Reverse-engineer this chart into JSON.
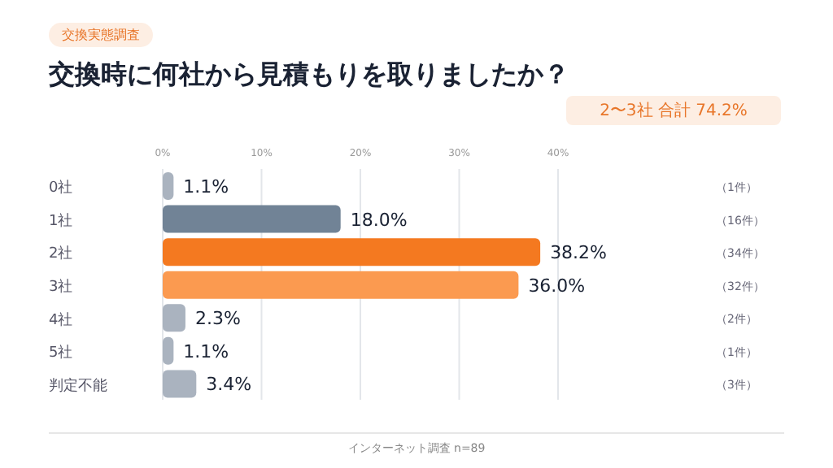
{
  "chart_data": {
    "type": "bar",
    "orientation": "horizontal",
    "title": "交換時に何社から見積もりを取りましたか？",
    "categories": [
      "0社",
      "1社",
      "2社",
      "3社",
      "4社",
      "5社",
      "判定不能"
    ],
    "values": [
      1.1,
      18.0,
      38.2,
      36.0,
      2.3,
      1.1,
      3.4
    ],
    "colors": [
      "#aab3bf",
      "#718396",
      "#f47920",
      "#fb9a50",
      "#aab3bf",
      "#aab3bf",
      "#aab3bf"
    ],
    "value_labels": [
      "1.1%",
      "18.0%",
      "38.2%",
      "36.0%",
      "2.3%",
      "1.1%",
      "3.4%"
    ],
    "xlim": [
      0,
      40
    ],
    "xticks": [
      {
        "value": 0,
        "label": "0%"
      },
      {
        "value": 10,
        "label": "10%"
      },
      {
        "value": 20,
        "label": "20%"
      },
      {
        "value": 30,
        "label": "30%"
      },
      {
        "value": 40,
        "label": "40%"
      }
    ],
    "grid": "x",
    "annotations": [
      "交換実態調査",
      "2〜3社 合計 74.2%",
      "インターネット調査 n=89",
      "（1件）",
      "（16件）",
      "（34件）",
      "（32件）",
      "（2件）",
      "（1件）",
      "（3件）"
    ]
  }
}
